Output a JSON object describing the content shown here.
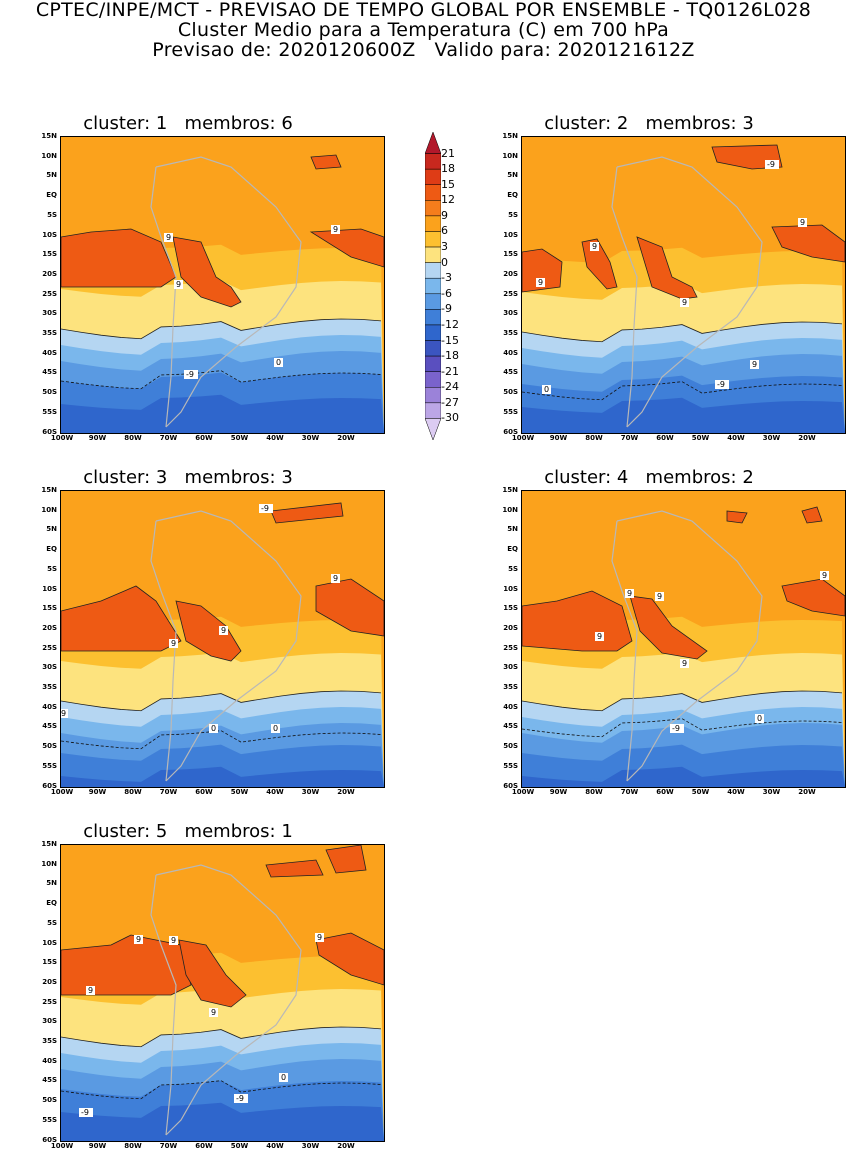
{
  "header": {
    "line1": "CPTEC/INPE/MCT - PREVISAO DE TEMPO GLOBAL POR ENSEMBLE - TQ0126L028",
    "line2": "Cluster Medio para a Temperatura (C) em 700 hPa",
    "line3": "Previsao de: 2020120600Z   Valido para: 2020121612Z"
  },
  "axes": {
    "lat_labels": [
      "15N",
      "10N",
      "5N",
      "EQ",
      "5S",
      "10S",
      "15S",
      "20S",
      "25S",
      "30S",
      "35S",
      "40S",
      "45S",
      "50S",
      "55S",
      "60S"
    ],
    "lon_labels": [
      "100W",
      "90W",
      "80W",
      "70W",
      "60W",
      "50W",
      "40W",
      "30W",
      "20W"
    ]
  },
  "colorbar": {
    "labels": [
      "21",
      "18",
      "15",
      "12",
      "9",
      "6",
      "3",
      "0",
      "-3",
      "-6",
      "-9",
      "-12",
      "-15",
      "-18",
      "-21",
      "-24",
      "-27",
      "-30"
    ],
    "colors": [
      "#b2182b",
      "#c8281e",
      "#de3c16",
      "#ee5a14",
      "#f57d1c",
      "#fba21c",
      "#fcc030",
      "#fde37e",
      "#b5d6f2",
      "#7ab7ec",
      "#5a9ae2",
      "#3f7fd8",
      "#2f66cc",
      "#3b55c0",
      "#5a4fbf",
      "#7a63cc",
      "#9b82d9",
      "#bca6e6",
      "#dcccf2"
    ]
  },
  "panels": [
    {
      "cluster_label": "cluster:",
      "cluster": "1",
      "members_label": "membros:",
      "members": "6",
      "contour_labels": [
        "9",
        "9",
        "9",
        "0",
        "-9"
      ]
    },
    {
      "cluster_label": "cluster:",
      "cluster": "2",
      "members_label": "membros:",
      "members": "3",
      "contour_labels": [
        "9",
        "9",
        "9",
        "9",
        "9",
        "0",
        "-9",
        "-9"
      ]
    },
    {
      "cluster_label": "cluster:",
      "cluster": "3",
      "members_label": "membros:",
      "members": "3",
      "contour_labels": [
        "9",
        "9",
        "9",
        "9",
        "0",
        "0",
        "-9"
      ]
    },
    {
      "cluster_label": "cluster:",
      "cluster": "4",
      "members_label": "membros:",
      "members": "2",
      "contour_labels": [
        "9",
        "9",
        "9",
        "9",
        "9",
        "0",
        "-9"
      ]
    },
    {
      "cluster_label": "cluster:",
      "cluster": "5",
      "members_label": "membros:",
      "members": "1",
      "contour_labels": [
        "9",
        "9",
        "9",
        "9",
        "9",
        "0",
        "-9",
        "-9"
      ]
    }
  ]
}
